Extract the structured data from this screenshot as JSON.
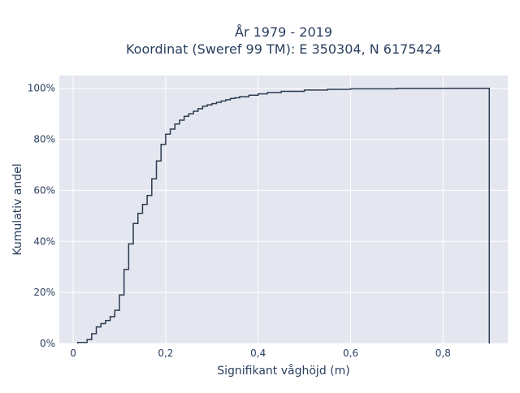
{
  "chart_data": {
    "type": "line",
    "line_shape": "step",
    "title_line1": "År 1979 - 2019",
    "title_line2": "Koordinat (Sweref 99 TM): E 350304, N 6175424",
    "xlabel": "Signifikant våghöjd (m)",
    "ylabel": "Kumulativ andel",
    "xlim": [
      -0.03,
      0.94
    ],
    "ylim": [
      0,
      1.05
    ],
    "x_ticks": [
      0,
      0.2,
      0.4,
      0.6,
      0.8
    ],
    "x_tick_labels": [
      "0",
      "0,2",
      "0,4",
      "0,6",
      "0,8"
    ],
    "y_ticks": [
      0,
      0.2,
      0.4,
      0.6,
      0.8,
      1.0
    ],
    "y_tick_labels": [
      "0%",
      "20%",
      "40%",
      "60%",
      "80%",
      "100%"
    ],
    "grid": true,
    "colors": {
      "plot_bg": "#e5e7f0",
      "grid": "#ffffff",
      "line": "#2b3a4f",
      "text": "#2a3f5f"
    },
    "series": [
      {
        "x": [
          0.01,
          0.03,
          0.04,
          0.05,
          0.06,
          0.07,
          0.08,
          0.09,
          0.1,
          0.11,
          0.12,
          0.13,
          0.14,
          0.15,
          0.16,
          0.17,
          0.18,
          0.19,
          0.2,
          0.21,
          0.22,
          0.23,
          0.24,
          0.25,
          0.26,
          0.27,
          0.28,
          0.29,
          0.3,
          0.31,
          0.32,
          0.33,
          0.34,
          0.35,
          0.36,
          0.38,
          0.4,
          0.42,
          0.45,
          0.5,
          0.55,
          0.6,
          0.7,
          0.8,
          0.9
        ],
        "y": [
          0.004,
          0.015,
          0.038,
          0.065,
          0.078,
          0.09,
          0.105,
          0.13,
          0.19,
          0.29,
          0.39,
          0.47,
          0.51,
          0.545,
          0.58,
          0.645,
          0.715,
          0.78,
          0.82,
          0.84,
          0.86,
          0.875,
          0.89,
          0.9,
          0.91,
          0.92,
          0.93,
          0.935,
          0.94,
          0.945,
          0.95,
          0.955,
          0.96,
          0.963,
          0.967,
          0.973,
          0.978,
          0.983,
          0.988,
          0.993,
          0.996,
          0.998,
          0.9995,
          1.0,
          1.0
        ]
      }
    ]
  }
}
